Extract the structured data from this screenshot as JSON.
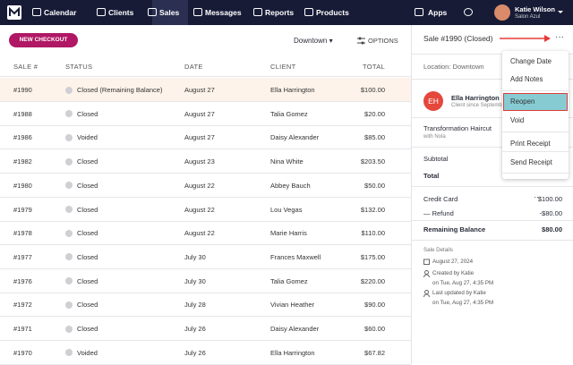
{
  "nav": {
    "items": [
      "Calendar",
      "Clients",
      "Sales",
      "Messages",
      "Reports",
      "Products"
    ],
    "active": "Sales",
    "apps": "Apps",
    "user": {
      "name": "Katie Wilson",
      "business": "Salon Azul"
    }
  },
  "toolbar": {
    "new_checkout": "NEW CHECKOUT",
    "location": "Downtown",
    "options": "OPTIONS"
  },
  "table": {
    "headers": [
      "SALE #",
      "STATUS",
      "DATE",
      "CLIENT",
      "TOTAL"
    ],
    "rows": [
      [
        "#1990",
        "Closed (Remaining Balance)",
        "August 27",
        "Ella Harrington",
        "$100.00"
      ],
      [
        "#1988",
        "Closed",
        "August 27",
        "Talia Gomez",
        "$20.00"
      ],
      [
        "#1986",
        "Voided",
        "August 27",
        "Daisy Alexander",
        "$85.00"
      ],
      [
        "#1982",
        "Closed",
        "August 23",
        "Nina White",
        "$203.50"
      ],
      [
        "#1980",
        "Closed",
        "August 22",
        "Abbey Bauch",
        "$50.00"
      ],
      [
        "#1979",
        "Closed",
        "August 22",
        "Lou Vegas",
        "$132.00"
      ],
      [
        "#1978",
        "Closed",
        "August 22",
        "Marie Harris",
        "$110.00"
      ],
      [
        "#1977",
        "Closed",
        "July 30",
        "Frances Maxwell",
        "$175.00"
      ],
      [
        "#1976",
        "Closed",
        "July 30",
        "Talia Gomez",
        "$220.00"
      ],
      [
        "#1972",
        "Closed",
        "July 28",
        "Vivian Heather",
        "$90.00"
      ],
      [
        "#1971",
        "Closed",
        "July 26",
        "Daisy Alexander",
        "$60.00"
      ],
      [
        "#1970",
        "Voided",
        "July 26",
        "Ella Harrington",
        "$67.82"
      ]
    ]
  },
  "detail": {
    "title": "Sale #1990 (Closed)",
    "location": "Location: Downtown",
    "client": {
      "initials": "EH",
      "name": "Ella Harrington",
      "since": "Client since Septemb"
    },
    "service": {
      "name": "Transformation Haircut",
      "staff": "with Nola"
    },
    "subtotal": "Subtotal",
    "total": "Total",
    "payments": [
      [
        "Credit Card",
        "$100.00"
      ],
      [
        "— Refund",
        "-$80.00"
      ]
    ],
    "remaining": [
      "Remaining Balance",
      "$80.00"
    ],
    "details_title": "Sale Details",
    "date": "August 27, 2024",
    "created": [
      "Created by Katie",
      "on Tue, Aug 27, 4:35 PM"
    ],
    "updated": [
      "Last updated by Katie",
      "on Tue, Aug 27, 4:35 PM"
    ]
  },
  "menu": {
    "items": [
      "Change Date",
      "Add Notes",
      "Reopen",
      "Void",
      "Print Receipt",
      "Send Receipt"
    ],
    "highlighted": "Reopen"
  }
}
